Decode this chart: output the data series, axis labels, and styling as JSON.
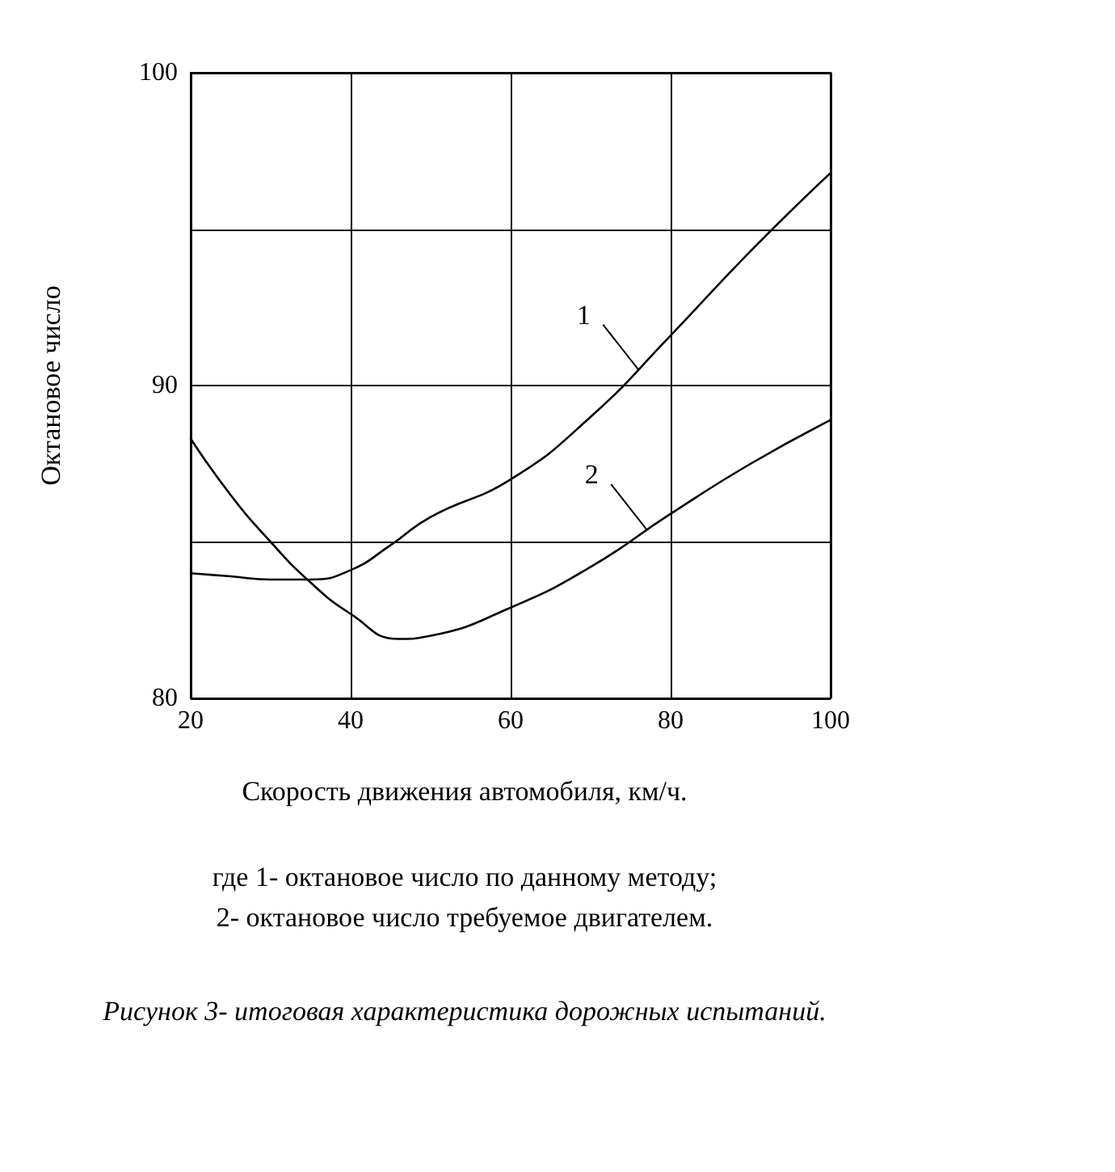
{
  "chart_data": {
    "type": "line",
    "title": "Рисунок 3- итоговая характеристика дорожных испытаний.",
    "xlabel": "Скорость движения автомобиля, км/ч.",
    "ylabel": "Октановое число",
    "annotations": [
      {
        "text": "1",
        "x": 76,
        "y": 90.5
      },
      {
        "text": "2",
        "x": 77,
        "y": 85.4
      },
      "где 1- октановое число по данному методу;",
      "2- октановое число требуемое двигателем."
    ],
    "series": [
      {
        "color": "#000000",
        "x": [
          20,
          25,
          30,
          35,
          40,
          45,
          50,
          60,
          70,
          80,
          90,
          100
        ],
        "values": [
          84.0,
          83.9,
          83.8,
          83.8,
          84.1,
          84.9,
          85.8,
          87.0,
          89.0,
          91.6,
          94.3,
          96.8
        ]
      },
      {
        "color": "#000000",
        "x": [
          20,
          25,
          30,
          35,
          40,
          46,
          50,
          60,
          70,
          80,
          90,
          100
        ],
        "values": [
          88.3,
          86.5,
          85.0,
          83.7,
          82.7,
          81.9,
          82.0,
          82.9,
          84.2,
          85.9,
          87.5,
          88.9
        ]
      }
    ],
    "xlim": [
      20,
      100
    ],
    "xticks": [
      20,
      40,
      60,
      80,
      100
    ],
    "ylim": [
      80,
      100
    ],
    "yticks": [
      80,
      {
        "value": 85,
        "label": null
      },
      90,
      {
        "value": 95,
        "label": null
      },
      100
    ],
    "grid": true,
    "marker": "none",
    "line_style": "solid"
  }
}
